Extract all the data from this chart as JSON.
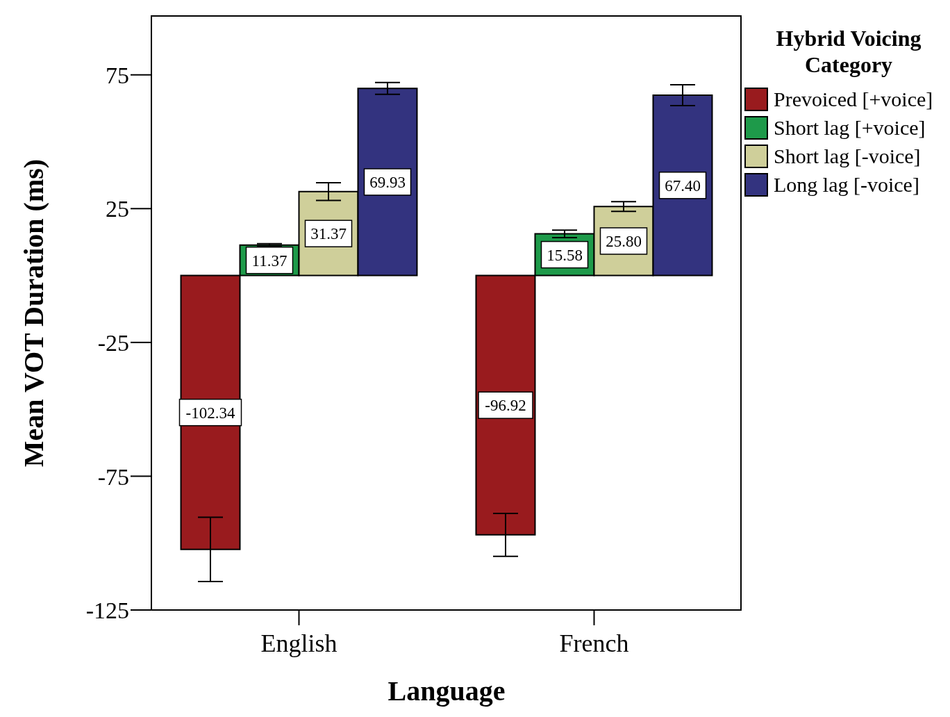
{
  "chart_data": {
    "type": "bar",
    "xlabel": "Language",
    "ylabel": "Mean VOT Duration (ms)",
    "legend_title": "Hybrid Voicing Category",
    "categories": [
      "English",
      "French"
    ],
    "series": [
      {
        "name": "Prevoiced [+voice]",
        "color": "#991b1e",
        "values": [
          -102.34,
          -96.92
        ],
        "errors": [
          12,
          8
        ],
        "value_labels": [
          "-102.34",
          "-96.92"
        ]
      },
      {
        "name": "Short lag [+voice]",
        "color": "#1e9a4a",
        "values": [
          11.37,
          15.58
        ],
        "errors": [
          0.5,
          1.4
        ],
        "value_labels": [
          "11.37",
          "15.58"
        ]
      },
      {
        "name": "Short lag [-voice]",
        "color": "#cfcf9a",
        "values": [
          31.37,
          25.8
        ],
        "errors": [
          3.3,
          1.8
        ],
        "value_labels": [
          "31.37",
          "25.80"
        ]
      },
      {
        "name": "Long lag [-voice]",
        "color": "#33337f",
        "values": [
          69.93,
          67.4
        ],
        "errors": [
          2.2,
          3.9
        ],
        "value_labels": [
          "69.93",
          "67.40"
        ]
      }
    ],
    "ylim": [
      -125,
      97
    ],
    "yticks": [
      -125,
      -75,
      -25,
      25,
      75
    ],
    "legend": "top right"
  }
}
